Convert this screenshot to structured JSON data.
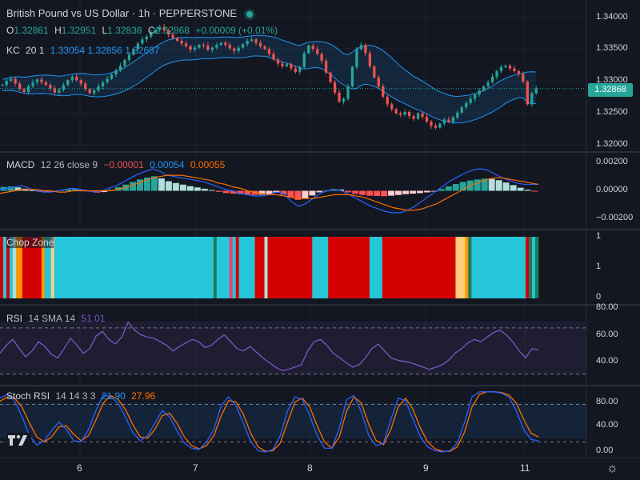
{
  "header": {
    "title": "British Pound vs US Dollar · 1h · PEPPERSTONE",
    "status_dot_color": "#26a69a",
    "ohlc": {
      "o_label": "O",
      "o": "1.32861",
      "h_label": "H",
      "h": "1.32951",
      "l_label": "L",
      "l": "1.32838",
      "c_label": "C",
      "c": "1.32868",
      "change": "+0.00009 (+0.01%)"
    },
    "kc": {
      "name": "KC",
      "params": "20 1",
      "upper": "1.33054",
      "basis": "1.32856",
      "lower": "1.32657"
    }
  },
  "price_badge": "1.32868",
  "price_axis": [
    "1.34000",
    "1.33500",
    "1.33000",
    "1.32500",
    "1.32000"
  ],
  "macd": {
    "name": "MACD",
    "params": "12 26 close 9",
    "hist": "−0.00001",
    "macd": "0.00054",
    "signal": "0.00055",
    "axis": [
      "0.00200",
      "0.00000",
      "−0.00200"
    ]
  },
  "chop": {
    "name": "Chop Zone",
    "axis": [
      "1",
      "1",
      "0"
    ]
  },
  "rsi": {
    "name": "RSI",
    "params": "14 SMA 14",
    "value": "51.01",
    "axis": [
      "80.00",
      "60.00",
      "40.00"
    ]
  },
  "stoch": {
    "name": "Stoch RSI",
    "params": "14 14 3 3",
    "k": "21.90",
    "d": "27.96",
    "axis": [
      "80.00",
      "40.00",
      "0.00"
    ]
  },
  "x_axis": [
    "6",
    "7",
    "8",
    "9",
    "11"
  ],
  "colors": {
    "bg": "#131722",
    "up": "#26a69a",
    "down": "#ef5350",
    "kc": "#2196f3",
    "macd": "#2962ff",
    "signal": "#ff6d00",
    "rsi": "#7e57c2",
    "stoch_k": "#2962ff",
    "stoch_d": "#ff6d00"
  },
  "chart_data": [
    {
      "type": "candlestick",
      "title": "British Pound vs US Dollar · 1h · PEPPERSTONE",
      "ylim": [
        1.3195,
        1.3415
      ],
      "x_ticks": [
        "6",
        "7",
        "8",
        "9",
        "11"
      ],
      "close": [
        1.3292,
        1.3298,
        1.3301,
        1.3294,
        1.3286,
        1.3282,
        1.329,
        1.3296,
        1.33,
        1.3296,
        1.3292,
        1.3287,
        1.3281,
        1.3285,
        1.3292,
        1.3299,
        1.3304,
        1.3299,
        1.3294,
        1.3286,
        1.328,
        1.3284,
        1.329,
        1.3296,
        1.3301,
        1.3307,
        1.3313,
        1.332,
        1.3328,
        1.3336,
        1.3344,
        1.3352,
        1.3358,
        1.3362,
        1.3368,
        1.3372,
        1.3376,
        1.3371,
        1.3365,
        1.336,
        1.3356,
        1.3352,
        1.3348,
        1.3343,
        1.3346,
        1.335,
        1.3349,
        1.3343,
        1.3346,
        1.335,
        1.3353,
        1.335,
        1.3345,
        1.3341,
        1.3346,
        1.3351,
        1.3356,
        1.3358,
        1.3353,
        1.3348,
        1.3344,
        1.3337,
        1.3329,
        1.3323,
        1.3319,
        1.3322,
        1.3316,
        1.3311,
        1.3318,
        1.3338,
        1.3349,
        1.3344,
        1.3337,
        1.3327,
        1.331,
        1.3296,
        1.3281,
        1.3268,
        1.3272,
        1.329,
        1.3318,
        1.3344,
        1.335,
        1.3338,
        1.3319,
        1.3303,
        1.329,
        1.3275,
        1.3264,
        1.3257,
        1.3251,
        1.3249,
        1.3253,
        1.3247,
        1.3243,
        1.3251,
        1.3246,
        1.3239,
        1.3233,
        1.323,
        1.3236,
        1.3242,
        1.3239,
        1.3245,
        1.3252,
        1.326,
        1.3266,
        1.3272,
        1.3278,
        1.3284,
        1.329,
        1.3296,
        1.3304,
        1.3312,
        1.3318,
        1.332,
        1.3316,
        1.3312,
        1.3308,
        1.3297,
        1.3264,
        1.328,
        1.3287
      ],
      "keltner": {
        "upper": "1.33054",
        "basis": "1.32856",
        "lower": "1.32657"
      }
    },
    {
      "type": "bar+line",
      "title": "MACD 12 26 close 9",
      "ylim": [
        -0.003,
        0.003
      ],
      "y_ticks": [
        "0.00200",
        "0.00000",
        "−0.00200"
      ],
      "series": [
        {
          "name": "Histogram",
          "values": [
            0.0003,
            0.00034,
            0.00026,
            0.00016,
            4e-05,
            -8e-05,
            -0.0001,
            -6e-05,
            6e-05,
            0.00012,
            0.00014,
            8e-05,
            -6e-05,
            -0.00014,
            -0.0001,
            8e-05,
            0.00028,
            0.00048,
            0.00068,
            0.00088,
            0.00102,
            0.00112,
            0.00096,
            0.00074,
            0.0006,
            0.00048,
            0.00036,
            0.00026,
            0.00016,
            6e-05,
            -8e-05,
            -0.00018,
            -0.00022,
            -0.00026,
            -0.0003,
            -0.00032,
            -0.0003,
            -0.00024,
            -0.00014,
            -0.0003,
            -0.00052,
            -0.0007,
            -0.0006,
            -0.00036,
            -0.00012,
            4e-05,
            0.00014,
            0.0001,
            -0.00012,
            -0.00024,
            -0.00032,
            -0.00038,
            -0.0004,
            -0.00042,
            -0.00038,
            -0.00032,
            -0.00026,
            -0.00022,
            -0.00018,
            -0.00012,
            -4e-05,
            0.00014,
            0.00034,
            0.00052,
            0.00068,
            0.0008,
            0.00088,
            0.00094,
            0.00092,
            0.00082,
            0.00064,
            0.00044,
            0.00024,
            8e-05,
            -1e-05
          ]
        },
        {
          "name": "MACD",
          "values": [
            0.0001,
            0.0002,
            0.0003,
            0.0004,
            0.0002,
            0.0,
            -0.0001,
            -0.0001,
            0.0,
            0.0001,
            0.0002,
            0.0001,
            0.0,
            -0.0001,
            0.0,
            0.0002,
            0.0004,
            0.0007,
            0.001,
            0.0013,
            0.0015,
            0.0017,
            0.0015,
            0.0012,
            0.0011,
            0.001,
            0.0009,
            0.0008,
            0.0007,
            0.0005,
            0.0003,
            0.0001,
            0.0,
            -0.0002,
            -0.0003,
            -0.0004,
            -0.0004,
            -0.0003,
            -0.0001,
            -0.0002,
            -0.0008,
            -0.0012,
            -0.001,
            -0.0006,
            -0.0002,
            0.0,
            0.0001,
            0.0,
            -0.0003,
            -0.0006,
            -0.0009,
            -0.0012,
            -0.0014,
            -0.0016,
            -0.0017,
            -0.0017,
            -0.0015,
            -0.0012,
            -0.0008,
            -0.0004,
            0.0,
            0.0004,
            0.0008,
            0.0011,
            0.0014,
            0.0016,
            0.0017,
            0.0016,
            0.0013,
            0.001,
            0.0008,
            0.0006,
            0.0005,
            0.0005,
            0.0005
          ]
        },
        {
          "name": "Signal",
          "values": [
            -0.0002,
            -0.0001,
            0.0,
            0.0001,
            0.0001,
            0.0001,
            0.0,
            0.0,
            -0.0001,
            -0.0001,
            0.0,
            0.0,
            0.0,
            0.0,
            0.0,
            0.0,
            0.0001,
            0.0002,
            0.0004,
            0.0006,
            0.0008,
            0.001,
            0.0011,
            0.0012,
            0.0012,
            0.0012,
            0.0011,
            0.001,
            0.0009,
            0.0008,
            0.0006,
            0.0005,
            0.0003,
            0.0002,
            0.0,
            -0.0001,
            -0.0002,
            -0.0003,
            -0.0003,
            -0.0004,
            -0.0005,
            -0.0006,
            -0.0006,
            -0.0006,
            -0.0005,
            -0.0004,
            -0.0003,
            -0.0003,
            -0.0003,
            -0.0004,
            -0.0005,
            -0.0007,
            -0.0009,
            -0.0011,
            -0.0013,
            -0.0014,
            -0.0015,
            -0.0015,
            -0.0014,
            -0.0012,
            -0.001,
            -0.0007,
            -0.0004,
            -0.0001,
            0.0002,
            0.0005,
            0.0007,
            0.0009,
            0.001,
            0.001,
            0.0009,
            0.0008,
            0.0007,
            0.0006,
            0.0005
          ]
        }
      ]
    },
    {
      "type": "heatmap",
      "title": "Chop Zone",
      "y_ticks": [
        "1",
        "1",
        "0"
      ],
      "colors": [
        "#d50000",
        "#26c6da",
        "#d50000",
        "#26c6da",
        "#b2dfdb",
        "#ff9800",
        "#ff9800",
        "#d50000",
        "#d50000",
        "#d50000",
        "#d50000",
        "#d50000",
        "#d50000",
        "#ff9800",
        "#26c6da",
        "#26c6da",
        "#ffcc80",
        "#26c6da",
        "#26c6da",
        "#26c6da",
        "#26c6da",
        "#26c6da",
        "#26c6da",
        "#26c6da",
        "#26c6da",
        "#26c6da",
        "#26c6da",
        "#26c6da",
        "#26c6da",
        "#26c6da",
        "#26c6da",
        "#26c6da",
        "#26c6da",
        "#26c6da",
        "#26c6da",
        "#26c6da",
        "#26c6da",
        "#26c6da",
        "#26c6da",
        "#26c6da",
        "#26c6da",
        "#26c6da",
        "#26c6da",
        "#26c6da",
        "#26c6da",
        "#26c6da",
        "#26c6da",
        "#26c6da",
        "#26c6da",
        "#26c6da",
        "#26c6da",
        "#26c6da",
        "#26c6da",
        "#26c6da",
        "#26c6da",
        "#26c6da",
        "#26c6da",
        "#26c6da",
        "#26c6da",
        "#26c6da",
        "#26c6da",
        "#26c6da",
        "#26c6da",
        "#26c6da",
        "#26c6da",
        "#26c6da",
        "#26c6da",
        "#1b7a56",
        "#26c6da",
        "#26c6da",
        "#26c6da",
        "#26c6da",
        "#ec407a",
        "#26c6da",
        "#d50000",
        "#26c6da",
        "#26c6da",
        "#26c6da",
        "#26c6da",
        "#26c6da",
        "#d50000",
        "#d50000",
        "#d50000",
        "#b2dfdb",
        "#d50000",
        "#d50000",
        "#d50000",
        "#d50000",
        "#d50000",
        "#d50000",
        "#d50000",
        "#d50000",
        "#d50000",
        "#d50000",
        "#d50000",
        "#d50000",
        "#d50000",
        "#d50000",
        "#26c6da",
        "#26c6da",
        "#26c6da",
        "#26c6da",
        "#26c6da",
        "#d50000",
        "#d50000",
        "#d50000",
        "#d50000",
        "#d50000",
        "#d50000",
        "#d50000",
        "#d50000",
        "#d50000",
        "#d50000",
        "#d50000",
        "#d50000",
        "#d50000",
        "#26c6da",
        "#26c6da",
        "#26c6da",
        "#26c6da",
        "#d50000",
        "#d50000",
        "#d50000",
        "#d50000",
        "#d50000",
        "#d50000",
        "#d50000",
        "#d50000",
        "#d50000",
        "#d50000",
        "#d50000",
        "#d50000",
        "#d50000",
        "#d50000",
        "#d50000",
        "#d50000",
        "#d50000",
        "#d50000",
        "#d50000",
        "#d50000",
        "#d50000",
        "#d50000",
        "#d50000",
        "#ffcc80",
        "#ffcc80",
        "#ffcc80",
        "#ff9800",
        "#1b7a56",
        "#26c6da",
        "#26c6da",
        "#26c6da",
        "#26c6da",
        "#26c6da",
        "#26c6da",
        "#26c6da",
        "#26c6da",
        "#26c6da",
        "#26c6da",
        "#26c6da",
        "#26c6da",
        "#26c6da",
        "#26c6da",
        "#26c6da",
        "#26c6da",
        "#26c6da",
        "#d50000",
        "#1b7a56",
        "#26c6da",
        "#1b7a56"
      ]
    },
    {
      "type": "line",
      "title": "RSI 14 SMA 14",
      "ylim": [
        20,
        90
      ],
      "y_ticks": [
        "80.00",
        "60.00",
        "40.00"
      ],
      "bands": [
        30,
        70
      ],
      "series": [
        {
          "name": "RSI",
          "values": [
            48,
            55,
            60,
            52,
            45,
            50,
            58,
            54,
            47,
            44,
            52,
            61,
            55,
            48,
            52,
            63,
            67,
            60,
            56,
            62,
            75,
            68,
            64,
            62,
            61,
            58,
            55,
            50,
            54,
            57,
            60,
            58,
            53,
            55,
            60,
            64,
            58,
            52,
            50,
            54,
            49,
            44,
            40,
            36,
            33,
            34,
            36,
            38,
            50,
            58,
            60,
            55,
            48,
            44,
            40,
            36,
            38,
            44,
            52,
            56,
            50,
            44,
            42,
            41,
            40,
            38,
            36,
            34,
            36,
            38,
            42,
            48,
            52,
            57,
            60,
            58,
            62,
            66,
            68,
            64,
            58,
            50,
            44,
            52,
            51
          ]
        }
      ]
    },
    {
      "type": "line",
      "title": "Stoch RSI 14 14 3 3",
      "ylim": [
        -5,
        110
      ],
      "y_ticks": [
        "80.00",
        "40.00",
        "0.00"
      ],
      "bands": [
        20,
        80
      ],
      "series": [
        {
          "name": "K",
          "values": [
            90,
            96,
            85,
            60,
            30,
            15,
            22,
            38,
            52,
            40,
            22,
            20,
            40,
            70,
            95,
            92,
            82,
            60,
            35,
            22,
            30,
            50,
            70,
            60,
            38,
            18,
            10,
            8,
            20,
            40,
            78,
            92,
            78,
            50,
            20,
            6,
            4,
            8,
            30,
            70,
            92,
            88,
            62,
            30,
            10,
            10,
            42,
            88,
            94,
            68,
            30,
            14,
            18,
            56,
            90,
            86,
            56,
            28,
            12,
            6,
            4,
            6,
            18,
            52,
            92,
            100,
            100,
            100,
            98,
            92,
            70,
            40,
            24,
            21.9
          ]
        },
        {
          "name": "D",
          "values": [
            85,
            92,
            90,
            75,
            50,
            28,
            20,
            28,
            44,
            46,
            32,
            22,
            30,
            55,
            82,
            94,
            88,
            72,
            48,
            28,
            26,
            40,
            62,
            66,
            50,
            28,
            14,
            9,
            14,
            30,
            62,
            86,
            84,
            64,
            34,
            12,
            5,
            6,
            18,
            52,
            84,
            90,
            76,
            46,
            20,
            10,
            28,
            70,
            92,
            82,
            48,
            22,
            16,
            40,
            76,
            90,
            72,
            42,
            20,
            9,
            5,
            5,
            12,
            36,
            76,
            96,
            100,
            100,
            99,
            95,
            82,
            56,
            34,
            27.96
          ]
        }
      ]
    }
  ]
}
